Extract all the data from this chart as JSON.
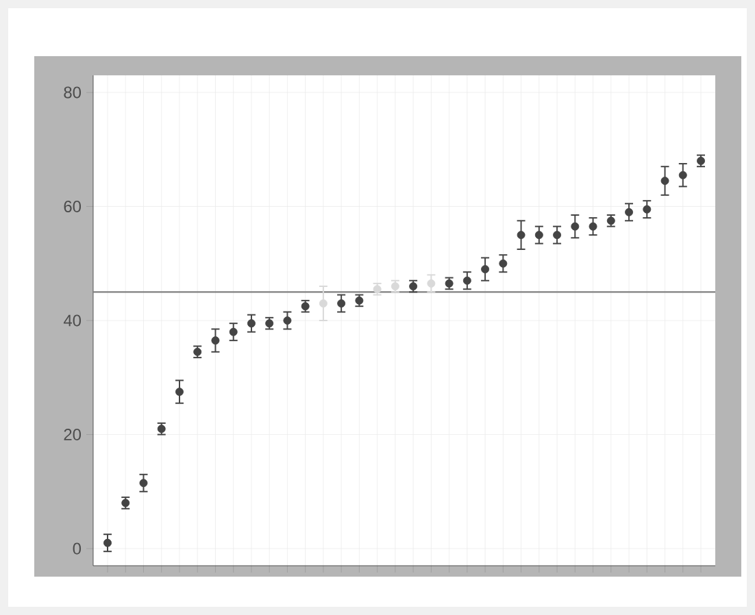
{
  "chart_data": {
    "type": "scatter",
    "categories": [
      null,
      null,
      null,
      null,
      null,
      null,
      null,
      null,
      null,
      null,
      null,
      null,
      null,
      null,
      null,
      null,
      null,
      null,
      null,
      null,
      null,
      null,
      null,
      null,
      null,
      null,
      null,
      null,
      null,
      null,
      null,
      null,
      null,
      null
    ],
    "values": [
      1,
      8,
      11.5,
      21,
      27.5,
      34.5,
      36.5,
      38,
      39.5,
      39.5,
      40,
      42.5,
      43,
      43,
      43.5,
      45.5,
      46,
      46,
      46.5,
      46.5,
      47,
      49,
      50,
      55,
      55,
      55,
      56.5,
      56.5,
      57.5,
      59,
      59.5,
      64.5,
      65.5,
      68
    ],
    "errors": [
      1.5,
      1,
      1.5,
      1,
      2,
      1,
      2,
      1.5,
      1.5,
      1,
      1.5,
      1,
      3,
      1.5,
      1,
      1,
      1,
      1,
      1.5,
      1,
      1.5,
      2,
      1.5,
      2.5,
      1.5,
      1.5,
      2,
      1.5,
      1,
      1.5,
      1.5,
      2.5,
      2,
      1
    ],
    "colors": [
      "#444444",
      "#444444",
      "#444444",
      "#444444",
      "#444444",
      "#444444",
      "#444444",
      "#444444",
      "#444444",
      "#444444",
      "#444444",
      "#444444",
      "#d9d9d9",
      "#444444",
      "#444444",
      "#d9d9d9",
      "#d9d9d9",
      "#444444",
      "#d9d9d9",
      "#444444",
      "#444444",
      "#444444",
      "#444444",
      "#444444",
      "#444444",
      "#444444",
      "#444444",
      "#444444",
      "#444444",
      "#444444",
      "#444444",
      "#444444",
      "#444444",
      "#444444"
    ],
    "ylim": [
      -3,
      83
    ],
    "yticks": [
      0,
      20,
      40,
      60,
      80
    ],
    "grid": true,
    "ref_lines": [
      {
        "axis": "y",
        "value": 45,
        "color": "#808080"
      }
    ]
  }
}
